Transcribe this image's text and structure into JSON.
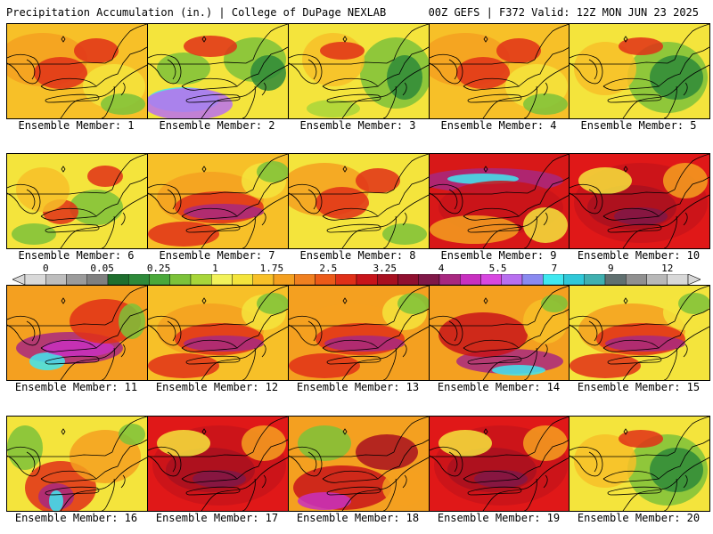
{
  "header": {
    "left": "Precipitation Accumulation (in.) | College of DuPage NEXLAB",
    "right": "00Z GEFS | F372 Valid: 12Z MON JUN 23 2025"
  },
  "members": [
    {
      "label": "Ensemble Member: 1",
      "base": "#f7c028",
      "pattern": "warm"
    },
    {
      "label": "Ensemble Member: 2",
      "base": "#f4e43c",
      "pattern": "wet-sw"
    },
    {
      "label": "Ensemble Member: 3",
      "base": "#f4e43c",
      "pattern": "green-east"
    },
    {
      "label": "Ensemble Member: 4",
      "base": "#f7c028",
      "pattern": "warm"
    },
    {
      "label": "Ensemble Member: 5",
      "base": "#f4e43c",
      "pattern": "dry-east"
    },
    {
      "label": "Ensemble Member: 6",
      "base": "#f4e43c",
      "pattern": "mixed"
    },
    {
      "label": "Ensemble Member: 7",
      "base": "#f7c028",
      "pattern": "purple-band"
    },
    {
      "label": "Ensemble Member: 8",
      "base": "#f4e43c",
      "pattern": "warm"
    },
    {
      "label": "Ensemble Member: 9",
      "base": "#d81818",
      "pattern": "cyan-north"
    },
    {
      "label": "Ensemble Member: 10",
      "base": "#e01818",
      "pattern": "red-wet"
    },
    {
      "label": "Ensemble Member: 11",
      "base": "#f4a020",
      "pattern": "cyan-center"
    },
    {
      "label": "Ensemble Member: 12",
      "base": "#f7c028",
      "pattern": "purple-band"
    },
    {
      "label": "Ensemble Member: 13",
      "base": "#f4a020",
      "pattern": "purple-band"
    },
    {
      "label": "Ensemble Member: 14",
      "base": "#f4a020",
      "pattern": "cyan-south"
    },
    {
      "label": "Ensemble Member: 15",
      "base": "#f4e43c",
      "pattern": "purple-band"
    },
    {
      "label": "Ensemble Member: 16",
      "base": "#f4e43c",
      "pattern": "cyan-sw"
    },
    {
      "label": "Ensemble Member: 17",
      "base": "#e01818",
      "pattern": "red-wet"
    },
    {
      "label": "Ensemble Member: 18",
      "base": "#f4a020",
      "pattern": "magenta-sw"
    },
    {
      "label": "Ensemble Member: 19",
      "base": "#e01818",
      "pattern": "red-wet"
    },
    {
      "label": "Ensemble Member: 20",
      "base": "#f4e43c",
      "pattern": "dry-east"
    }
  ],
  "colorbar": {
    "tick_labels": [
      "0",
      "0.05",
      "0.25",
      "1",
      "1.75",
      "2.5",
      "3.25",
      "4",
      "5.5",
      "7",
      "9",
      "12"
    ],
    "colors": [
      "#d9d9d9",
      "#bdbdbd",
      "#9b9b9b",
      "#808080",
      "#1e6e2e",
      "#2e8a3a",
      "#4aa83a",
      "#7cc23a",
      "#a8d63a",
      "#f2f25a",
      "#f4e43c",
      "#f7c028",
      "#f4a020",
      "#f08020",
      "#ec5a18",
      "#e03018",
      "#c8141a",
      "#a81020",
      "#901030",
      "#801848",
      "#a82880",
      "#c830c0",
      "#d848e0",
      "#b870f0",
      "#8a8af0",
      "#40e8f0",
      "#30c8d8",
      "#40b0b0",
      "#607070",
      "#909090",
      "#b8b8b8",
      "#d8d8d8"
    ]
  }
}
